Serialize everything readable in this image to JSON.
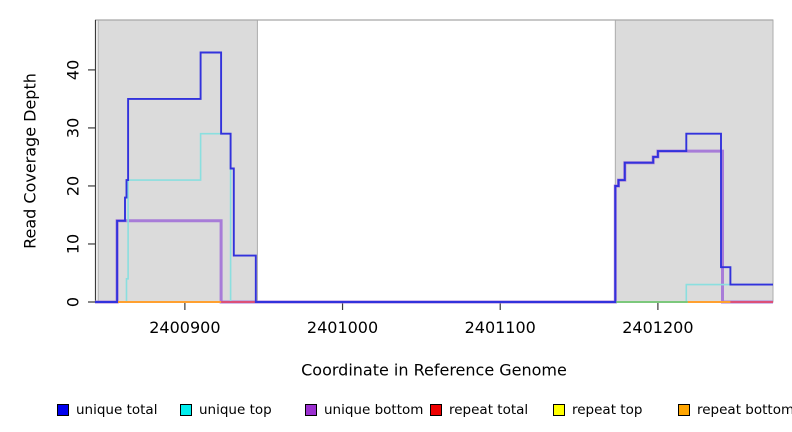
{
  "chart_data": {
    "type": "line",
    "title": "",
    "xlabel": "Coordinate in Reference Genome",
    "ylabel": "Read Coverage Depth",
    "xlim": [
      2400843,
      2401273
    ],
    "ylim": [
      0,
      48.6
    ],
    "xticks": [
      "2400900",
      "2401000",
      "2401100",
      "2401200"
    ],
    "xtick_values": [
      2400900,
      2401000,
      2401100,
      2401200
    ],
    "yticks": [
      "0",
      "10",
      "20",
      "30",
      "40"
    ],
    "ytick_values": [
      0,
      10,
      20,
      30,
      40
    ],
    "grid": false,
    "background_color": "#FFFFFF",
    "shaded_region_color": "#DBDBDB",
    "shaded_region_border": "#ACACAC",
    "shaded_regions": [
      {
        "from": 2400845,
        "to": 2400946
      },
      {
        "from": 2401173,
        "to": 2401273
      }
    ],
    "series": [
      {
        "name": "unique bottom",
        "color": "#A87CD8",
        "width": 3,
        "points": [
          [
            2400843,
            0
          ],
          [
            2400857,
            0
          ],
          [
            2400857,
            14
          ],
          [
            2400923,
            14
          ],
          [
            2400923,
            0
          ],
          [
            2401173,
            0
          ],
          [
            2401173,
            20
          ],
          [
            2401175,
            20
          ],
          [
            2401175,
            21
          ],
          [
            2401179,
            21
          ],
          [
            2401179,
            24
          ],
          [
            2401197,
            24
          ],
          [
            2401197,
            25
          ],
          [
            2401200,
            25
          ],
          [
            2401200,
            26
          ],
          [
            2401241,
            26
          ],
          [
            2401241,
            0
          ],
          [
            2401273,
            0
          ]
        ]
      },
      {
        "name": "unique top",
        "color": "#8ADFDF",
        "width": 1.6,
        "points": [
          [
            2400863,
            0
          ],
          [
            2400863,
            4
          ],
          [
            2400864,
            4
          ],
          [
            2400864,
            21
          ],
          [
            2400910,
            21
          ],
          [
            2400910,
            29
          ],
          [
            2400929,
            29
          ],
          [
            2400929,
            0
          ],
          [
            2401218,
            0
          ],
          [
            2401218,
            3
          ],
          [
            2401273,
            3
          ]
        ]
      },
      {
        "name": "unique total",
        "color": "#3232DC",
        "width": 1.9,
        "points": [
          [
            2400843,
            0
          ],
          [
            2400857,
            0
          ],
          [
            2400857,
            14
          ],
          [
            2400862,
            14
          ],
          [
            2400862,
            18
          ],
          [
            2400863,
            18
          ],
          [
            2400863,
            21
          ],
          [
            2400864,
            21
          ],
          [
            2400864,
            35
          ],
          [
            2400910,
            35
          ],
          [
            2400910,
            43
          ],
          [
            2400923,
            43
          ],
          [
            2400923,
            29
          ],
          [
            2400929,
            29
          ],
          [
            2400929,
            23
          ],
          [
            2400931,
            23
          ],
          [
            2400931,
            8
          ],
          [
            2400945,
            8
          ],
          [
            2400945,
            0
          ],
          [
            2401173,
            0
          ],
          [
            2401173,
            20
          ],
          [
            2401175,
            20
          ],
          [
            2401175,
            21
          ],
          [
            2401179,
            21
          ],
          [
            2401179,
            24
          ],
          [
            2401197,
            24
          ],
          [
            2401197,
            25
          ],
          [
            2401200,
            25
          ],
          [
            2401200,
            26
          ],
          [
            2401218,
            26
          ],
          [
            2401218,
            29
          ],
          [
            2401240,
            29
          ],
          [
            2401240,
            6
          ],
          [
            2401246,
            6
          ],
          [
            2401246,
            3
          ],
          [
            2401273,
            3
          ]
        ]
      }
    ],
    "baseline_segments": [
      {
        "label": "repeat bottom",
        "color": "#FFA030",
        "from": 2400843,
        "to": 2400923,
        "value": 0
      },
      {
        "label": "repeat total",
        "color": "#DC5078",
        "from": 2400923,
        "to": 2400945,
        "value": 0
      },
      {
        "label": "unique top + repeat top overlap",
        "color": "#7CC87C",
        "from": 2401173,
        "to": 2401219,
        "value": 0
      },
      {
        "label": "repeat bottom",
        "color": "#FFA030",
        "from": 2401219,
        "to": 2401246,
        "value": 0
      },
      {
        "label": "repeat total",
        "color": "#DC5078",
        "from": 2401246,
        "to": 2401273,
        "value": 0
      }
    ],
    "legend": [
      {
        "label": "unique total",
        "color": "#0000EE"
      },
      {
        "label": "unique top",
        "color": "#00EEEE"
      },
      {
        "label": "unique bottom",
        "color": "#9B30D0"
      },
      {
        "label": "repeat total",
        "color": "#EE0000"
      },
      {
        "label": "repeat top",
        "color": "#FFFF00"
      },
      {
        "label": "repeat bottom",
        "color": "#FFA500"
      }
    ],
    "legend_position": "bottom-horizontal"
  }
}
